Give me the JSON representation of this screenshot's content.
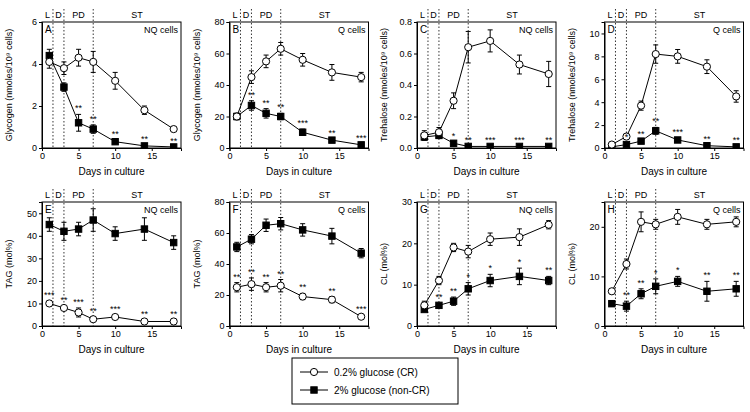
{
  "chart_data": [
    {
      "type": "line",
      "title": "A",
      "subtitle": "NQ cells",
      "x_label": "Days in culture",
      "y_label": "Glycogen (nmoles/10⁹ cells)",
      "x": [
        1,
        3,
        5,
        7,
        10,
        14,
        18
      ],
      "xlim": [
        0,
        19
      ],
      "xticks": [
        0,
        5,
        10,
        15
      ],
      "ylim": [
        0,
        6
      ],
      "yticks": [
        0,
        2,
        4,
        6
      ],
      "legend": "bottom",
      "annotations": [
        {
          "label": "L",
          "start": 0,
          "end": 1.5
        },
        {
          "label": "D",
          "start": 1.5,
          "end": 3
        },
        {
          "label": "PD",
          "start": 3,
          "end": 7
        },
        {
          "label": "ST",
          "start": 7,
          "end": 19
        }
      ],
      "series": [
        {
          "name": "0.2% glucose (CR)",
          "color": "#000000",
          "marker": "circle-open",
          "values": [
            4.1,
            3.8,
            4.3,
            4.1,
            3.2,
            1.8,
            0.9
          ],
          "errors": [
            0.3,
            0.3,
            0.4,
            0.5,
            0.4,
            0.2,
            0.1
          ]
        },
        {
          "name": "2% glucose (non-CR)",
          "color": "#000000",
          "marker": "square",
          "values": [
            4.4,
            2.9,
            1.2,
            0.9,
            0.3,
            0.1,
            0.05
          ],
          "errors": [
            0.3,
            0.2,
            0.4,
            0.2,
            0.1,
            0.05,
            0.02
          ],
          "significance": [
            null,
            null,
            "**",
            "**",
            "**",
            "**",
            "**"
          ]
        }
      ]
    },
    {
      "type": "line",
      "title": "B",
      "subtitle": "Q cells",
      "x_label": "Days in culture",
      "y_label": "Glycogen (nmoles/10⁹ cells)",
      "x": [
        1,
        3,
        5,
        7,
        10,
        14,
        18
      ],
      "xlim": [
        0,
        19
      ],
      "xticks": [
        0,
        5,
        10,
        15
      ],
      "ylim": [
        0,
        80
      ],
      "yticks": [
        0,
        20,
        40,
        60,
        80
      ],
      "annotations": [
        {
          "label": "L",
          "start": 0,
          "end": 1.5
        },
        {
          "label": "D",
          "start": 1.5,
          "end": 3
        },
        {
          "label": "PD",
          "start": 3,
          "end": 7
        },
        {
          "label": "ST",
          "start": 7,
          "end": 19
        }
      ],
      "series": [
        {
          "name": "0.2% glucose (CR)",
          "color": "#000000",
          "marker": "circle-open",
          "values": [
            20,
            45,
            55,
            63,
            56,
            48,
            45
          ],
          "errors": [
            2,
            4,
            4,
            4,
            4,
            5,
            3
          ]
        },
        {
          "name": "2% glucose (non-CR)",
          "color": "#000000",
          "marker": "square",
          "values": [
            20,
            27,
            22,
            20,
            10,
            5,
            2
          ],
          "errors": [
            2,
            3,
            3,
            2,
            2,
            1,
            0.5
          ],
          "significance": [
            null,
            "**",
            "**",
            "**",
            "***",
            "**",
            "***"
          ]
        }
      ]
    },
    {
      "type": "line",
      "title": "C",
      "subtitle": "NQ cells",
      "x_label": "Days in culture",
      "y_label": "Trehalose (nmoles/10⁹ cells)",
      "x": [
        1,
        3,
        5,
        7,
        10,
        14,
        18
      ],
      "xlim": [
        0,
        19
      ],
      "xticks": [
        0,
        5,
        10,
        15
      ],
      "ylim": [
        0,
        0.8
      ],
      "yticks": [
        {
          "value": 0,
          "label": "0.0"
        },
        {
          "value": 0.2,
          "label": "0.2"
        },
        {
          "value": 0.4,
          "label": "0.4"
        },
        {
          "value": 0.6,
          "label": "0.6"
        },
        {
          "value": 0.8,
          "label": "0.8"
        }
      ],
      "annotations": [
        {
          "label": "L",
          "start": 0,
          "end": 1.5
        },
        {
          "label": "D",
          "start": 1.5,
          "end": 3
        },
        {
          "label": "PD",
          "start": 3,
          "end": 7
        },
        {
          "label": "ST",
          "start": 7,
          "end": 19
        }
      ],
      "series": [
        {
          "name": "0.2% glucose (CR)",
          "color": "#000000",
          "marker": "circle-open",
          "values": [
            0.08,
            0.1,
            0.3,
            0.64,
            0.68,
            0.53,
            0.47
          ],
          "errors": [
            0.03,
            0.03,
            0.05,
            0.1,
            0.07,
            0.06,
            0.08
          ]
        },
        {
          "name": "2% glucose (non-CR)",
          "color": "#000000",
          "marker": "square",
          "values": [
            0.07,
            0.08,
            0.03,
            0.01,
            0.01,
            0.01,
            0.01
          ],
          "errors": [
            0.02,
            0.02,
            0.01,
            0.005,
            0.005,
            0.005,
            0.005
          ],
          "significance": [
            null,
            null,
            "*",
            "**",
            "***",
            "***",
            "**"
          ]
        }
      ]
    },
    {
      "type": "line",
      "title": "D",
      "subtitle": "Q cells",
      "x_label": "Days in culture",
      "y_label": "Trehalose (nmoles/10⁹ cells)",
      "x": [
        1,
        3,
        5,
        7,
        10,
        14,
        18
      ],
      "xlim": [
        0,
        19
      ],
      "xticks": [
        0,
        5,
        10,
        15
      ],
      "ylim": [
        0,
        11
      ],
      "yticks": [
        0,
        2,
        4,
        6,
        8,
        10
      ],
      "annotations": [
        {
          "label": "L",
          "start": 0,
          "end": 1.5
        },
        {
          "label": "D",
          "start": 1.5,
          "end": 3
        },
        {
          "label": "PD",
          "start": 3,
          "end": 7
        },
        {
          "label": "ST",
          "start": 7,
          "end": 19
        }
      ],
      "series": [
        {
          "name": "0.2% glucose (CR)",
          "color": "#000000",
          "marker": "circle-open",
          "values": [
            0.3,
            1.0,
            3.7,
            8.2,
            8.0,
            7.1,
            4.5
          ],
          "errors": [
            0.1,
            0.2,
            0.4,
            0.8,
            0.6,
            0.6,
            0.5
          ]
        },
        {
          "name": "2% glucose (non-CR)",
          "color": "#000000",
          "marker": "square",
          "values": [
            0.1,
            0.3,
            0.6,
            1.5,
            0.7,
            0.2,
            0.1
          ],
          "errors": [
            0.05,
            0.1,
            0.1,
            0.3,
            0.2,
            0.05,
            0.05
          ],
          "significance": [
            null,
            "*",
            "**",
            "**",
            "***",
            "**",
            "**"
          ]
        }
      ]
    },
    {
      "type": "line",
      "title": "E",
      "subtitle": "NQ cells",
      "x_label": "Days in culture",
      "y_label": "TAG (mol%)",
      "x": [
        1,
        3,
        5,
        7,
        10,
        14,
        18
      ],
      "xlim": [
        0,
        19
      ],
      "xticks": [
        0,
        5,
        10,
        15
      ],
      "ylim": [
        0,
        55
      ],
      "yticks": [
        0,
        10,
        20,
        30,
        40,
        50
      ],
      "annotations": [
        {
          "label": "L",
          "start": 0,
          "end": 1.5
        },
        {
          "label": "D",
          "start": 1.5,
          "end": 3
        },
        {
          "label": "PD",
          "start": 3,
          "end": 7
        },
        {
          "label": "ST",
          "start": 7,
          "end": 19
        }
      ],
      "series": [
        {
          "name": "0.2% glucose (CR)",
          "color": "#000000",
          "marker": "circle-open",
          "values": [
            10,
            8,
            6,
            3,
            4,
            2,
            2
          ],
          "errors": [
            1,
            1,
            2,
            1,
            1,
            0.5,
            0.5
          ],
          "significance": [
            "***",
            "**",
            "***",
            "**",
            "***",
            "**",
            "**"
          ]
        },
        {
          "name": "2% glucose (non-CR)",
          "color": "#000000",
          "marker": "square",
          "values": [
            45,
            42,
            43,
            47,
            41,
            43,
            37
          ],
          "errors": [
            3,
            4,
            3,
            5,
            3,
            5,
            3
          ]
        }
      ]
    },
    {
      "type": "line",
      "title": "F",
      "subtitle": "Q cells",
      "x_label": "Days in culture",
      "y_label": "TAG (mol%)",
      "x": [
        1,
        3,
        5,
        7,
        10,
        14,
        18
      ],
      "xlim": [
        0,
        19
      ],
      "xticks": [
        0,
        5,
        10,
        15
      ],
      "ylim": [
        0,
        80
      ],
      "yticks": [
        0,
        20,
        40,
        60,
        80
      ],
      "annotations": [
        {
          "label": "L",
          "start": 0,
          "end": 1.5
        },
        {
          "label": "D",
          "start": 1.5,
          "end": 3
        },
        {
          "label": "PD",
          "start": 3,
          "end": 7
        },
        {
          "label": "ST",
          "start": 7,
          "end": 19
        }
      ],
      "series": [
        {
          "name": "0.2% glucose (CR)",
          "color": "#000000",
          "marker": "circle-open",
          "values": [
            25,
            27,
            25,
            26,
            19,
            17,
            6
          ],
          "errors": [
            3,
            4,
            3,
            4,
            2,
            2,
            1
          ],
          "significance": [
            "**",
            "**",
            "**",
            "**",
            "**",
            "**",
            "***"
          ]
        },
        {
          "name": "2% glucose (non-CR)",
          "color": "#000000",
          "marker": "square",
          "values": [
            51,
            56,
            65,
            66,
            62,
            58,
            47
          ],
          "errors": [
            3,
            3,
            4,
            4,
            4,
            5,
            3
          ]
        }
      ]
    },
    {
      "type": "line",
      "title": "G",
      "subtitle": "NQ cells",
      "x_label": "Days in culture",
      "y_label": "CL (mol%)",
      "x": [
        1,
        3,
        5,
        7,
        10,
        14,
        18
      ],
      "xlim": [
        0,
        19
      ],
      "xticks": [
        0,
        5,
        10,
        15
      ],
      "ylim": [
        0,
        30
      ],
      "yticks": [
        0,
        10,
        20,
        30
      ],
      "annotations": [
        {
          "label": "L",
          "start": 0,
          "end": 1.5
        },
        {
          "label": "D",
          "start": 1.5,
          "end": 3
        },
        {
          "label": "PD",
          "start": 3,
          "end": 7
        },
        {
          "label": "ST",
          "start": 7,
          "end": 19
        }
      ],
      "series": [
        {
          "name": "0.2% glucose (CR)",
          "color": "#000000",
          "marker": "circle-open",
          "values": [
            5,
            11,
            19,
            18,
            21,
            21.5,
            24.5
          ],
          "errors": [
            1,
            1,
            1,
            1.5,
            1.5,
            2,
            1
          ]
        },
        {
          "name": "2% glucose (non-CR)",
          "color": "#000000",
          "marker": "square",
          "values": [
            4,
            5,
            6,
            9,
            11,
            12,
            11
          ],
          "errors": [
            0.5,
            0.5,
            1,
            1.5,
            1.5,
            2,
            1
          ],
          "significance": [
            null,
            "**",
            "**",
            "*",
            "*",
            "*",
            "**"
          ]
        }
      ]
    },
    {
      "type": "line",
      "title": "H",
      "subtitle": "Q cells",
      "x_label": "Days in culture",
      "y_label": "CL (mol%)",
      "x": [
        1,
        3,
        5,
        7,
        10,
        14,
        18
      ],
      "xlim": [
        0,
        19
      ],
      "xticks": [
        0,
        5,
        10,
        15
      ],
      "ylim": [
        0,
        25
      ],
      "yticks": [
        0,
        10,
        20
      ],
      "annotations": [
        {
          "label": "L",
          "start": 0,
          "end": 1.5
        },
        {
          "label": "D",
          "start": 1.5,
          "end": 3
        },
        {
          "label": "PD",
          "start": 3,
          "end": 7
        },
        {
          "label": "ST",
          "start": 7,
          "end": 19
        }
      ],
      "series": [
        {
          "name": "0.2% glucose (CR)",
          "color": "#000000",
          "marker": "circle-open",
          "values": [
            7,
            12.5,
            21,
            20.5,
            22,
            20.5,
            21
          ],
          "errors": [
            0.5,
            1,
            2,
            1,
            1.5,
            1,
            1
          ]
        },
        {
          "name": "2% glucose (non-CR)",
          "color": "#000000",
          "marker": "square",
          "values": [
            4.5,
            4,
            6.5,
            8,
            9,
            7,
            7.5
          ],
          "errors": [
            0.5,
            1,
            1,
            1.5,
            1,
            2,
            1.5
          ],
          "significance": [
            null,
            "**",
            "**",
            "*",
            "*",
            "**",
            "**"
          ]
        }
      ]
    }
  ]
}
